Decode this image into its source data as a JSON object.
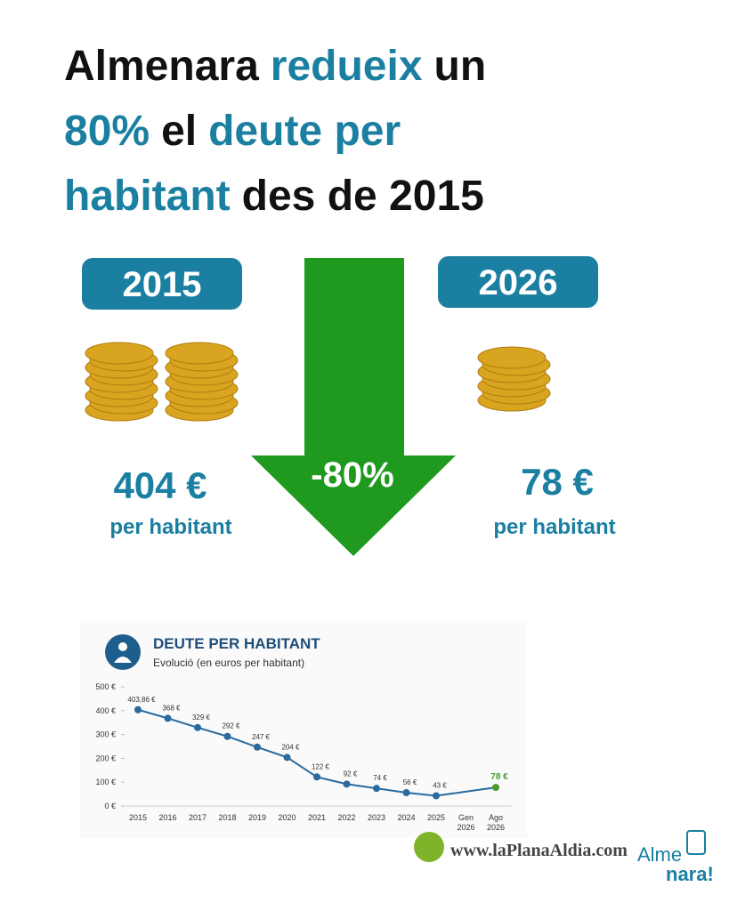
{
  "header": {
    "title_lines": [
      [
        {
          "text": "Almenara",
          "color": "#111111"
        },
        {
          "text": "redueix",
          "color": "#1a7fa0"
        },
        {
          "text": "un",
          "color": "#111111"
        }
      ],
      [
        {
          "text": "80%",
          "color": "#1a7fa0"
        },
        {
          "text": "el",
          "color": "#111111"
        },
        {
          "text": "deute per",
          "color": "#1a7fa0"
        }
      ],
      [
        {
          "text": "habitant",
          "color": "#1a7fa0"
        },
        {
          "text": "des de 2015",
          "color": "#111111"
        }
      ]
    ]
  },
  "before": {
    "year": "2015",
    "amount": "404 €",
    "unit": "per habitant"
  },
  "after": {
    "year": "2026",
    "amount": "78 €",
    "unit": "per habitant"
  },
  "arrow": {
    "label": "-80%",
    "color": "#1f9a1f"
  },
  "chart_data": {
    "type": "line",
    "title": "DEUTE PER HABITANT",
    "subtitle": "Evolució (en euros per habitant)",
    "categories": [
      "2015",
      "2016",
      "2017",
      "2018",
      "2019",
      "2020",
      "2021",
      "2022",
      "2023",
      "2024",
      "2025",
      "Gen 2026",
      "Ago 2026"
    ],
    "series": [
      {
        "color": "#2a6a9e",
        "values": [
          403.86,
          368,
          329,
          292,
          247,
          204,
          122,
          92,
          74,
          56,
          43,
          null,
          78
        ],
        "value_labels": [
          "403,86 €",
          "368 €",
          "329 €",
          "292 €",
          "247 €",
          "204 €",
          "122 €",
          "92 €",
          "74 €",
          "56 €",
          "43 €",
          null,
          "78 €"
        ]
      }
    ],
    "last_color": "#4c9a2a",
    "ylim": [
      0,
      500
    ],
    "yticks": [
      {
        "value": 0,
        "label": "0 €"
      },
      {
        "value": 100,
        "label": "100 €"
      },
      {
        "value": 200,
        "label": "200 €"
      },
      {
        "value": 300,
        "label": "300 €"
      },
      {
        "value": 400,
        "label": "400 €"
      },
      {
        "value": 500,
        "label": "500 €"
      }
    ]
  },
  "footer": {
    "watermark": "www.laPlanaAldia.com",
    "logo_top": "Alme",
    "logo_bottom": "nara!"
  }
}
